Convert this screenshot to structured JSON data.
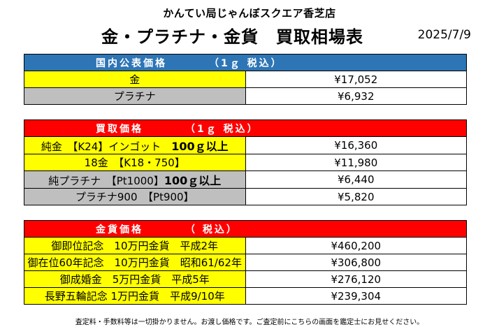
{
  "header": {
    "store_name": "かんてい局じゃんぼスクエア香芝店",
    "title": "金・プラチナ・金貨　買取相場表",
    "date": "2025/7/9"
  },
  "public_price": {
    "heading": "国内公表価格",
    "unit": "（1ｇ 税込）",
    "rows": [
      {
        "label": "金",
        "value": "¥17,052",
        "color": "#ffff00"
      },
      {
        "label": "プラチナ",
        "value": "¥6,932",
        "color": "#bfbfbf"
      }
    ]
  },
  "buy_price": {
    "heading": "買取価格",
    "unit": "（1ｇ 税込）",
    "rows": [
      {
        "label": "純金　【K24】インゴット　",
        "suffix": "100ｇ以上",
        "value": "¥16,360",
        "color": "#ffff00"
      },
      {
        "label": "18金　【K18・750】",
        "value": "¥11,980",
        "color": "#ffff00"
      },
      {
        "label": "純プラチナ　【Pt1000】",
        "suffix": "100ｇ以上",
        "value": "¥6,440",
        "color": "#bfbfbf"
      },
      {
        "label": "プラチナ900　【Pt900】",
        "value": "¥5,820",
        "color": "#bfbfbf"
      }
    ]
  },
  "coin_price": {
    "heading": "金貨価格",
    "unit": "（ 税込）",
    "rows": [
      {
        "label": "御即位記念　10万円金貨　平成2年",
        "value": "¥460,200",
        "color": "#ffff00"
      },
      {
        "label": "御在位60年記念　10万円金貨　昭和61/62年",
        "value": "¥306,800",
        "color": "#ffff00"
      },
      {
        "label": "御成婚金　5万円金貨　平成5年",
        "value": "¥276,120",
        "color": "#ffff00"
      },
      {
        "label": "長野五輪記念 1万円金貨　平成9/10年",
        "value": "¥239,304",
        "color": "#ffff00"
      }
    ]
  },
  "footer_note": "査定料・手数料等は一切掛かりません。お渡し価格です。ご査定前にこちらの画面を鑑定士にお見せください。"
}
